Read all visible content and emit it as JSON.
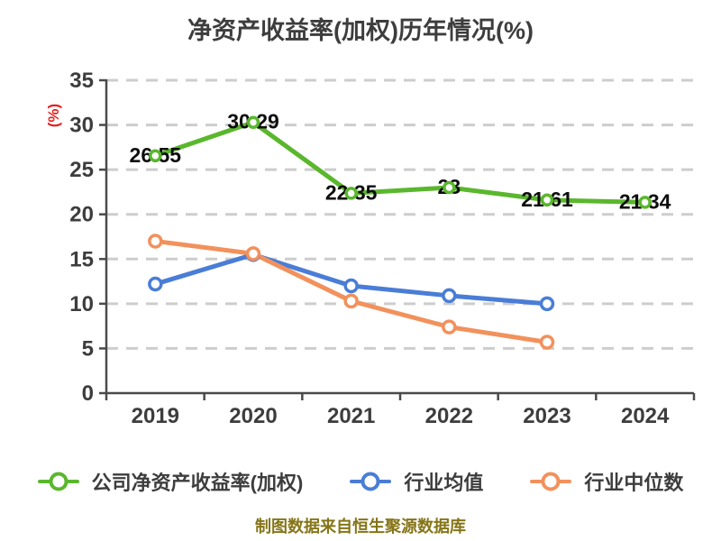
{
  "title": "净资产收益率(加权)历年情况(%)",
  "footer": "制图数据来自恒生聚源数据库",
  "colors": {
    "company_green": "#5ab72d",
    "industry_avg_blue": "#4a7dd6",
    "industry_median_orange": "#f2915c",
    "grid": "#cdcdcd",
    "axis": "#4a4a4a",
    "tick_text": "#3d3d3d",
    "title_text": "#3d3d3d",
    "data_label_text": "#0d0d0d",
    "ylabel_red": "#e32222",
    "footer_olive": "#857518"
  },
  "chart_data": {
    "type": "line",
    "title": "净资产收益率(加权)历年情况(%)",
    "xlabel": "",
    "ylabel": "(%)",
    "categories": [
      "2019",
      "2020",
      "2021",
      "2022",
      "2023",
      "2024"
    ],
    "ylim": [
      0,
      35
    ],
    "ytick_step": 5,
    "yticks": [
      0,
      5,
      10,
      15,
      20,
      25,
      30,
      35
    ],
    "grid": "horizontal-dashed",
    "legend_position": "bottom",
    "series": [
      {
        "name": "公司净资产收益率(加权)",
        "color": "#5ab72d",
        "marker": "circle-white-fill",
        "values": [
          26.55,
          30.29,
          22.35,
          23,
          21.61,
          21.34
        ],
        "point_labels": [
          "26.55",
          "30.29",
          "22.35",
          "23",
          "21.61",
          "21.34"
        ],
        "show_labels": true
      },
      {
        "name": "行业均值",
        "color": "#4a7dd6",
        "marker": "circle-white-fill",
        "values": [
          12.2,
          15.5,
          12.0,
          10.9,
          10.0,
          null
        ],
        "show_labels": false
      },
      {
        "name": "行业中位数",
        "color": "#f2915c",
        "marker": "circle-white-fill",
        "values": [
          17.0,
          15.6,
          10.3,
          7.4,
          5.7,
          null
        ],
        "show_labels": false
      }
    ]
  }
}
